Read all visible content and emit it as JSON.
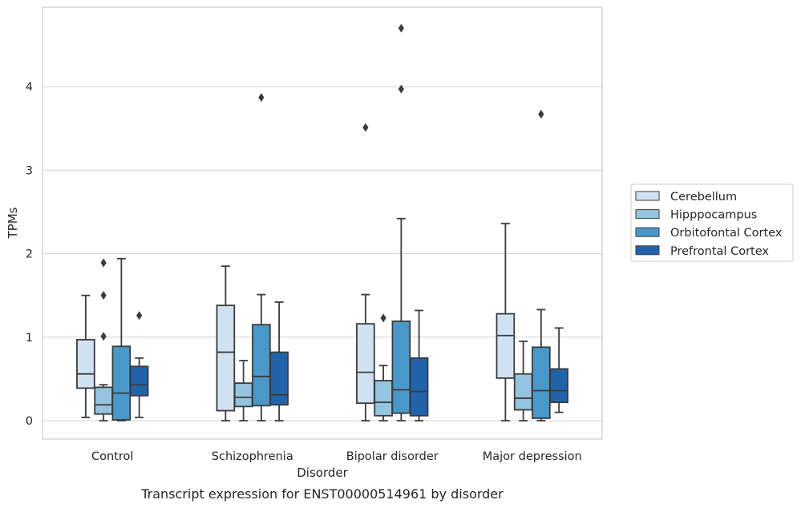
{
  "caption": "Transcript expression for ENST00000514961 by disorder",
  "chart_data": {
    "type": "boxplot",
    "xlabel": "Disorder",
    "ylabel": "TPMs",
    "ylim": [
      -0.22,
      4.95
    ],
    "yticks": [
      0,
      1,
      2,
      3,
      4
    ],
    "grid": true,
    "legend_position": "right",
    "categories": [
      "Control",
      "Schizophrenia",
      "Bipolar disorder",
      "Major depression"
    ],
    "series": [
      {
        "name": "Cerebellum",
        "color": "#d0e1f2",
        "boxes": [
          {
            "whislo": 0.04,
            "q1": 0.39,
            "med": 0.56,
            "q3": 0.97,
            "whishi": 1.5,
            "fliers": []
          },
          {
            "whislo": 0.0,
            "q1": 0.12,
            "med": 0.82,
            "q3": 1.38,
            "whishi": 1.85,
            "fliers": []
          },
          {
            "whislo": 0.0,
            "q1": 0.21,
            "med": 0.58,
            "q3": 1.16,
            "whishi": 1.51,
            "fliers": [
              3.51
            ]
          },
          {
            "whislo": 0.0,
            "q1": 0.51,
            "med": 1.02,
            "q3": 1.28,
            "whishi": 2.36,
            "fliers": []
          }
        ]
      },
      {
        "name": "Hipppocampus",
        "color": "#94c4df",
        "boxes": [
          {
            "whislo": 0.0,
            "q1": 0.08,
            "med": 0.19,
            "q3": 0.4,
            "whishi": 0.43,
            "fliers": [
              1.01,
              1.5,
              1.89
            ]
          },
          {
            "whislo": 0.0,
            "q1": 0.17,
            "med": 0.28,
            "q3": 0.45,
            "whishi": 0.72,
            "fliers": []
          },
          {
            "whislo": 0.0,
            "q1": 0.06,
            "med": 0.22,
            "q3": 0.48,
            "whishi": 0.66,
            "fliers": [
              1.23
            ]
          },
          {
            "whislo": 0.0,
            "q1": 0.13,
            "med": 0.27,
            "q3": 0.56,
            "whishi": 0.95,
            "fliers": []
          }
        ]
      },
      {
        "name": "Orbitofontal Cortex",
        "color": "#4a98c9",
        "boxes": [
          {
            "whislo": 0.0,
            "q1": 0.01,
            "med": 0.33,
            "q3": 0.89,
            "whishi": 1.94,
            "fliers": []
          },
          {
            "whislo": 0.0,
            "q1": 0.18,
            "med": 0.53,
            "q3": 1.15,
            "whishi": 1.51,
            "fliers": [
              3.87
            ]
          },
          {
            "whislo": 0.0,
            "q1": 0.09,
            "med": 0.37,
            "q3": 1.19,
            "whishi": 2.42,
            "fliers": [
              3.97,
              4.7
            ]
          },
          {
            "whislo": 0.0,
            "q1": 0.03,
            "med": 0.36,
            "q3": 0.88,
            "whishi": 1.33,
            "fliers": [
              3.67
            ]
          }
        ]
      },
      {
        "name": "Prefrontal Cortex",
        "color": "#2264ab",
        "boxes": [
          {
            "whislo": 0.04,
            "q1": 0.3,
            "med": 0.43,
            "q3": 0.65,
            "whishi": 0.75,
            "fliers": [
              1.26
            ]
          },
          {
            "whislo": 0.0,
            "q1": 0.19,
            "med": 0.31,
            "q3": 0.82,
            "whishi": 1.42,
            "fliers": []
          },
          {
            "whislo": 0.0,
            "q1": 0.06,
            "med": 0.35,
            "q3": 0.75,
            "whishi": 1.32,
            "fliers": []
          },
          {
            "whislo": 0.1,
            "q1": 0.22,
            "med": 0.36,
            "q3": 0.62,
            "whishi": 1.11,
            "fliers": []
          }
        ]
      }
    ]
  }
}
